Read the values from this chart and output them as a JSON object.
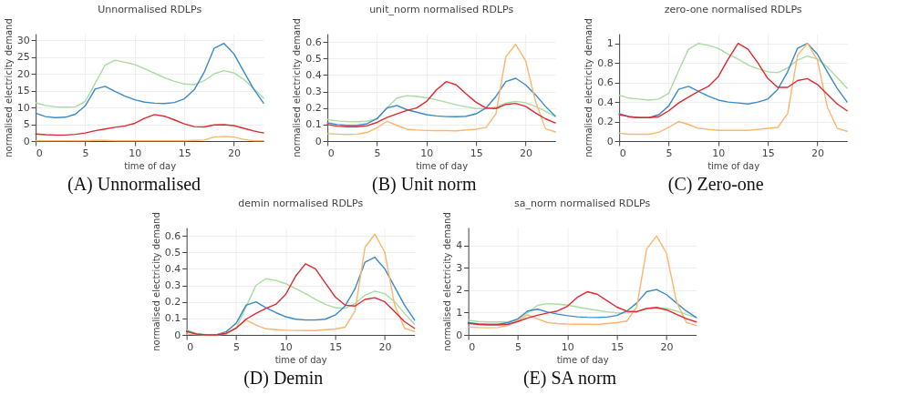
{
  "chart_data": [
    {
      "type": "line",
      "title": "Unnormalised RDLPs",
      "xlabel": "time of day",
      "ylabel": "normalised electricity demand",
      "annotations": [
        "(A) Unnormalised"
      ],
      "grid": true,
      "xlim": [
        0,
        23
      ],
      "ylim": [
        0,
        32
      ],
      "xticks": [
        0,
        5,
        10,
        15,
        20
      ],
      "yticks": [
        0,
        5,
        10,
        15,
        20,
        25,
        30
      ],
      "x": [
        0,
        1,
        2,
        3,
        4,
        5,
        6,
        7,
        8,
        9,
        10,
        11,
        12,
        13,
        14,
        15,
        16,
        17,
        18,
        19,
        20,
        21,
        22,
        23
      ],
      "series": [
        {
          "color": "#a8dca0",
          "values": [
            11.4,
            10.6,
            10.2,
            10.1,
            10.2,
            11.8,
            17.2,
            22.6,
            24.1,
            23.5,
            22.8,
            21.5,
            20.2,
            18.9,
            17.8,
            17.0,
            16.8,
            18.0,
            20.0,
            21.0,
            20.3,
            18.4,
            15.6,
            12.8
          ]
        },
        {
          "color": "#3a8ac8",
          "values": [
            8.3,
            7.3,
            7.0,
            7.1,
            8.0,
            10.5,
            15.5,
            16.3,
            14.8,
            13.4,
            12.3,
            11.6,
            11.3,
            11.2,
            11.5,
            12.6,
            15.3,
            20.5,
            27.6,
            29.1,
            26.0,
            20.7,
            15.5,
            11.3
          ]
        },
        {
          "color": "#fdb56b",
          "values": [
            0.1,
            0.1,
            0.1,
            0.1,
            0.1,
            0.1,
            0.2,
            0.2,
            0.1,
            0.1,
            0.1,
            0.1,
            0.1,
            0.1,
            0.1,
            0.1,
            0.2,
            0.3,
            1.2,
            1.4,
            1.2,
            0.5,
            0.1,
            0.1
          ]
        },
        {
          "color": "#e0282e",
          "values": [
            2.1,
            1.9,
            1.8,
            1.8,
            2.0,
            2.4,
            3.1,
            3.6,
            4.1,
            4.5,
            5.3,
            6.8,
            7.9,
            7.4,
            6.3,
            5.1,
            4.3,
            4.2,
            4.8,
            4.9,
            4.6,
            3.8,
            3.0,
            2.4
          ]
        }
      ]
    },
    {
      "type": "line",
      "title": "unit_norm normalised RDLPs",
      "xlabel": "time of day",
      "ylabel": "normalised electricity demand",
      "annotations": [
        "(B) Unit norm"
      ],
      "grid": true,
      "xlim": [
        0,
        23
      ],
      "ylim": [
        0,
        0.65
      ],
      "xticks": [
        0,
        5,
        10,
        15,
        20
      ],
      "yticks": [
        0,
        0.1,
        0.2,
        0.3,
        0.4,
        0.5,
        0.6
      ],
      "x": [
        0,
        1,
        2,
        3,
        4,
        5,
        6,
        7,
        8,
        9,
        10,
        11,
        12,
        13,
        14,
        15,
        16,
        17,
        18,
        19,
        20,
        21,
        22,
        23
      ],
      "series": [
        {
          "color": "#a8dca0",
          "values": [
            0.13,
            0.122,
            0.118,
            0.117,
            0.12,
            0.135,
            0.2,
            0.26,
            0.275,
            0.27,
            0.262,
            0.25,
            0.235,
            0.22,
            0.207,
            0.197,
            0.195,
            0.205,
            0.23,
            0.24,
            0.232,
            0.21,
            0.18,
            0.15
          ]
        },
        {
          "color": "#3a8ac8",
          "values": [
            0.11,
            0.1,
            0.095,
            0.095,
            0.105,
            0.135,
            0.2,
            0.215,
            0.19,
            0.175,
            0.16,
            0.152,
            0.148,
            0.147,
            0.15,
            0.165,
            0.2,
            0.27,
            0.36,
            0.38,
            0.34,
            0.28,
            0.21,
            0.15
          ]
        },
        {
          "color": "#fdb56b",
          "values": [
            0.045,
            0.042,
            0.04,
            0.042,
            0.052,
            0.08,
            0.12,
            0.095,
            0.072,
            0.067,
            0.064,
            0.063,
            0.063,
            0.062,
            0.067,
            0.072,
            0.082,
            0.165,
            0.51,
            0.585,
            0.485,
            0.24,
            0.075,
            0.055
          ]
        },
        {
          "color": "#e0282e",
          "values": [
            0.1,
            0.09,
            0.087,
            0.087,
            0.093,
            0.113,
            0.143,
            0.165,
            0.185,
            0.2,
            0.24,
            0.31,
            0.36,
            0.34,
            0.285,
            0.235,
            0.2,
            0.197,
            0.222,
            0.228,
            0.21,
            0.17,
            0.135,
            0.11
          ]
        }
      ]
    },
    {
      "type": "line",
      "title": "zero-one normalised RDLPs",
      "xlabel": "time of day",
      "ylabel": "normalised electricity demand",
      "annotations": [
        "(C) Zero-one"
      ],
      "grid": true,
      "xlim": [
        0,
        23
      ],
      "ylim": [
        0,
        1.1
      ],
      "xticks": [
        0,
        5,
        10,
        15,
        20
      ],
      "yticks": [
        0,
        0.2,
        0.4,
        0.6,
        0.8,
        1
      ],
      "x": [
        0,
        1,
        2,
        3,
        4,
        5,
        6,
        7,
        8,
        9,
        10,
        11,
        12,
        13,
        14,
        15,
        16,
        17,
        18,
        19,
        20,
        21,
        22,
        23
      ],
      "series": [
        {
          "color": "#a8dca0",
          "values": [
            0.47,
            0.44,
            0.43,
            0.42,
            0.43,
            0.49,
            0.72,
            0.94,
            1.0,
            0.98,
            0.95,
            0.89,
            0.84,
            0.78,
            0.74,
            0.71,
            0.7,
            0.75,
            0.83,
            0.87,
            0.84,
            0.76,
            0.65,
            0.54
          ]
        },
        {
          "color": "#3a8ac8",
          "values": [
            0.28,
            0.25,
            0.24,
            0.24,
            0.27,
            0.36,
            0.53,
            0.56,
            0.51,
            0.46,
            0.42,
            0.4,
            0.39,
            0.38,
            0.4,
            0.43,
            0.53,
            0.71,
            0.95,
            1.0,
            0.89,
            0.71,
            0.54,
            0.4
          ]
        },
        {
          "color": "#fdb56b",
          "values": [
            0.08,
            0.07,
            0.07,
            0.07,
            0.09,
            0.14,
            0.2,
            0.17,
            0.13,
            0.12,
            0.11,
            0.11,
            0.11,
            0.11,
            0.12,
            0.13,
            0.14,
            0.28,
            0.88,
            1.0,
            0.83,
            0.35,
            0.13,
            0.1
          ]
        },
        {
          "color": "#e0282e",
          "values": [
            0.27,
            0.25,
            0.24,
            0.24,
            0.25,
            0.31,
            0.39,
            0.45,
            0.51,
            0.56,
            0.66,
            0.84,
            1.0,
            0.94,
            0.8,
            0.64,
            0.55,
            0.55,
            0.62,
            0.64,
            0.58,
            0.48,
            0.38,
            0.31
          ]
        }
      ]
    },
    {
      "type": "line",
      "title": "demin normalised RDLPs",
      "xlabel": "time of day",
      "ylabel": "normalised electricity demand",
      "annotations": [
        "(D) Demin"
      ],
      "grid": true,
      "xlim": [
        0,
        23
      ],
      "ylim": [
        0,
        0.65
      ],
      "xticks": [
        0,
        5,
        10,
        15,
        20
      ],
      "yticks": [
        0,
        0.1,
        0.2,
        0.3,
        0.4,
        0.5,
        0.6
      ],
      "x": [
        0,
        1,
        2,
        3,
        4,
        5,
        6,
        7,
        8,
        9,
        10,
        11,
        12,
        13,
        14,
        15,
        16,
        17,
        18,
        19,
        20,
        21,
        22,
        23
      ],
      "series": [
        {
          "color": "#a8dca0",
          "values": [
            0.03,
            0.01,
            0,
            0,
            0.005,
            0.04,
            0.17,
            0.3,
            0.34,
            0.33,
            0.31,
            0.28,
            0.25,
            0.215,
            0.185,
            0.165,
            0.16,
            0.19,
            0.24,
            0.265,
            0.25,
            0.2,
            0.13,
            0.065
          ]
        },
        {
          "color": "#3a8ac8",
          "values": [
            0.025,
            0.005,
            0,
            0,
            0.02,
            0.07,
            0.18,
            0.2,
            0.165,
            0.135,
            0.11,
            0.095,
            0.09,
            0.09,
            0.095,
            0.12,
            0.175,
            0.28,
            0.44,
            0.47,
            0.4,
            0.29,
            0.18,
            0.09
          ]
        },
        {
          "color": "#fdb56b",
          "values": [
            0.005,
            0.002,
            0,
            0,
            0.01,
            0.045,
            0.09,
            0.06,
            0.037,
            0.032,
            0.028,
            0.027,
            0.026,
            0.026,
            0.032,
            0.036,
            0.047,
            0.145,
            0.53,
            0.61,
            0.5,
            0.18,
            0.04,
            0.02
          ]
        },
        {
          "color": "#e0282e",
          "values": [
            0.02,
            0.005,
            0,
            0,
            0.01,
            0.04,
            0.095,
            0.13,
            0.16,
            0.185,
            0.245,
            0.355,
            0.43,
            0.4,
            0.315,
            0.23,
            0.18,
            0.175,
            0.215,
            0.225,
            0.2,
            0.14,
            0.08,
            0.04
          ]
        }
      ]
    },
    {
      "type": "line",
      "title": "sa_norm normalised RDLPs",
      "xlabel": "time of day",
      "ylabel": "normalised electricity demand",
      "annotations": [
        "(E) SA norm"
      ],
      "grid": true,
      "xlim": [
        0,
        23
      ],
      "ylim": [
        0,
        4.8
      ],
      "xticks": [
        0,
        5,
        10,
        15,
        20
      ],
      "yticks": [
        0,
        1,
        2,
        3,
        4
      ],
      "x": [
        0,
        1,
        2,
        3,
        4,
        5,
        6,
        7,
        8,
        9,
        10,
        11,
        12,
        13,
        14,
        15,
        16,
        17,
        18,
        19,
        20,
        21,
        22,
        23
      ],
      "series": [
        {
          "color": "#a8dca0",
          "values": [
            0.65,
            0.6,
            0.58,
            0.58,
            0.58,
            0.68,
            1.0,
            1.32,
            1.4,
            1.37,
            1.33,
            1.25,
            1.17,
            1.1,
            1.03,
            0.98,
            0.98,
            1.05,
            1.18,
            1.23,
            1.18,
            1.07,
            0.92,
            0.77
          ]
        },
        {
          "color": "#3a8ac8",
          "values": [
            0.55,
            0.5,
            0.48,
            0.48,
            0.55,
            0.72,
            1.07,
            1.15,
            1.02,
            0.93,
            0.86,
            0.81,
            0.79,
            0.78,
            0.8,
            0.87,
            1.07,
            1.43,
            1.93,
            2.03,
            1.8,
            1.43,
            1.07,
            0.78
          ]
        },
        {
          "color": "#fdb56b",
          "values": [
            0.35,
            0.33,
            0.32,
            0.33,
            0.42,
            0.62,
            0.9,
            0.72,
            0.55,
            0.51,
            0.49,
            0.48,
            0.48,
            0.47,
            0.51,
            0.55,
            0.62,
            1.25,
            3.85,
            4.42,
            3.65,
            1.5,
            0.56,
            0.42
          ]
        },
        {
          "color": "#e0282e",
          "values": [
            0.52,
            0.47,
            0.45,
            0.45,
            0.48,
            0.6,
            0.76,
            0.88,
            0.98,
            1.07,
            1.28,
            1.68,
            1.93,
            1.82,
            1.53,
            1.24,
            1.06,
            1.04,
            1.18,
            1.22,
            1.12,
            0.92,
            0.73,
            0.58
          ]
        }
      ]
    }
  ]
}
